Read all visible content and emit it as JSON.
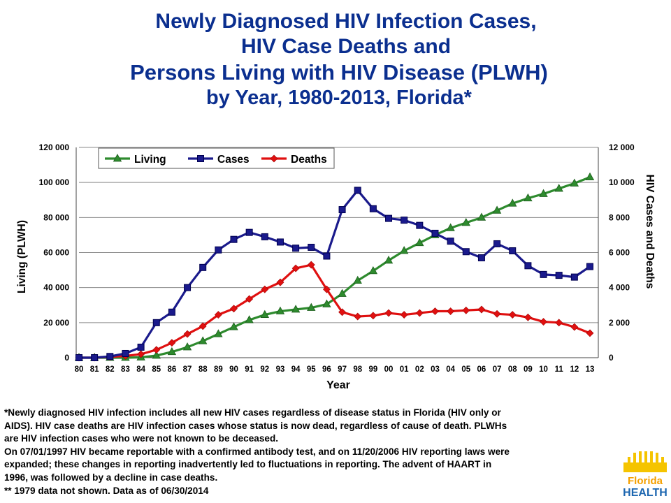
{
  "title": {
    "line1": "Newly Diagnosed HIV Infection Cases,",
    "line2": "HIV Case Deaths and",
    "line3": "Persons Living with HIV Disease (PLWH)",
    "line4": "by Year, 1980-2013, Florida*"
  },
  "notes": [
    "*Newly diagnosed HIV infection includes all new HIV cases regardless of disease status in Florida (HIV only or",
    "AIDS).  HIV case deaths are HIV infection cases whose status is now dead, regardless of cause of death.  PLWHs",
    "are HIV infection cases who were not known to be deceased.",
    "On 07/01/1997 HIV became reportable with a confirmed antibody test, and on 11/20/2006 HIV reporting laws were",
    "expanded; these changes in reporting inadvertently led to fluctuations in reporting.  The advent of HAART in",
    "1996, was followed by a decline in case deaths.",
    "** 1979 data not shown.  Data as of 06/30/2014"
  ],
  "logo": {
    "text_line1": "Florida",
    "text_line2": "HEALTH",
    "colors": {
      "sun": "#f5c400",
      "text_top": "#f5a000",
      "text_bottom": "#1c66b0"
    }
  },
  "chart_data": {
    "type": "line",
    "xlabel": "Year",
    "ylabel_left": "Living (PLWH)",
    "ylabel_right": "HIV Cases and Deaths",
    "ylim_left": [
      0,
      120000
    ],
    "ylim_right": [
      0,
      12000
    ],
    "yticks_left": [
      "0",
      "20 000",
      "40 000",
      "60 000",
      "80 000",
      "100 000",
      "120 000"
    ],
    "yticks_right": [
      "0",
      "2 000",
      "4 000",
      "6 000",
      "8 000",
      "10 000",
      "12 000"
    ],
    "grid": true,
    "legend_position": "top-left",
    "categories": [
      "80",
      "81",
      "82",
      "83",
      "84",
      "85",
      "86",
      "87",
      "88",
      "89",
      "90",
      "91",
      "92",
      "93",
      "94",
      "95",
      "96",
      "97",
      "98",
      "99",
      "00",
      "01",
      "02",
      "03",
      "04",
      "05",
      "06",
      "07",
      "08",
      "09",
      "10",
      "11",
      "12",
      "13"
    ],
    "series": [
      {
        "name": "Living",
        "axis": "left",
        "color": "#2e8b2e",
        "marker": "triangle",
        "values": [
          0,
          0,
          0,
          0,
          200,
          1200,
          3300,
          6000,
          9500,
          13500,
          17500,
          21500,
          24500,
          26500,
          27500,
          28500,
          30500,
          36500,
          44000,
          49500,
          55500,
          61000,
          65500,
          70000,
          74000,
          77000,
          80000,
          84000,
          88000,
          91000,
          93500,
          96500,
          99500,
          103000
        ]
      },
      {
        "name": "Cases",
        "axis": "right",
        "color": "#1a1a8c",
        "marker": "square",
        "values": [
          0,
          0,
          70,
          240,
          600,
          2000,
          2600,
          4000,
          5150,
          6150,
          6750,
          7150,
          6900,
          6600,
          6250,
          6300,
          5800,
          8450,
          9550,
          8500,
          7950,
          7850,
          7550,
          7100,
          6650,
          6050,
          5700,
          6500,
          6100,
          5250,
          4750,
          4700,
          4600,
          5200
        ]
      },
      {
        "name": "Deaths",
        "axis": "right",
        "color": "#e01010",
        "marker": "diamond",
        "values": [
          0,
          0,
          50,
          100,
          200,
          450,
          850,
          1350,
          1800,
          2450,
          2800,
          3350,
          3900,
          4300,
          5100,
          5300,
          3900,
          2600,
          2350,
          2400,
          2550,
          2450,
          2550,
          2650,
          2650,
          2700,
          2750,
          2500,
          2450,
          2300,
          2050,
          2000,
          1750,
          1400
        ]
      }
    ]
  }
}
